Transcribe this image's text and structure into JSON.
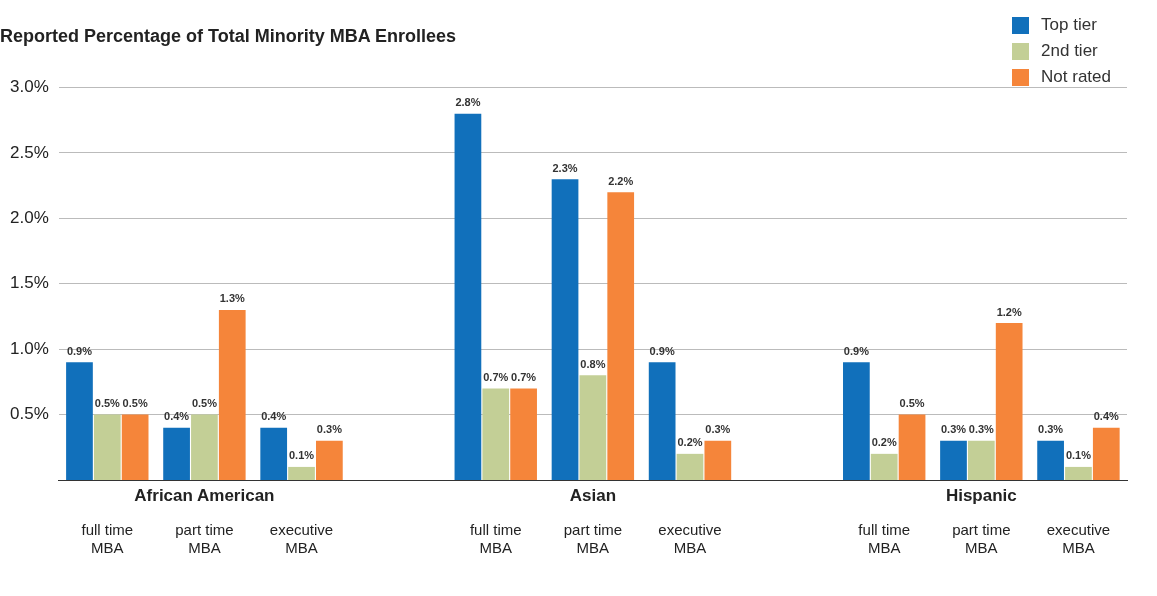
{
  "chart_data": {
    "type": "bar",
    "title": "Reported Percentage of Total Minority MBA Enrollees",
    "categories": [
      "full time MBA",
      "part time MBA",
      "executive MBA",
      null,
      "full time MBA",
      "part time MBA",
      "executive MBA",
      null,
      "full time MBA",
      "part time MBA",
      "executive MBA"
    ],
    "series": [
      {
        "name": "Top tier",
        "color": "#1170bb",
        "values": [
          0.9,
          0.4,
          0.4,
          null,
          2.8,
          2.3,
          0.9,
          null,
          0.9,
          0.3,
          0.3
        ],
        "value_labels": [
          "0.9%",
          "0.4%",
          "0.4%",
          null,
          "2.8%",
          "2.3%",
          "0.9%",
          null,
          "0.9%",
          "0.3%",
          "0.3%"
        ]
      },
      {
        "name": "2nd tier",
        "color": "#c3cf96",
        "values": [
          0.5,
          0.5,
          0.1,
          null,
          0.7,
          0.8,
          0.2,
          null,
          0.2,
          0.3,
          0.1
        ],
        "value_labels": [
          "0.5%",
          "0.5%",
          "0.1%",
          null,
          "0.7%",
          "0.8%",
          "0.2%",
          null,
          "0.2%",
          "0.3%",
          "0.1%"
        ]
      },
      {
        "name": "Not rated",
        "color": "#f5853a",
        "values": [
          0.5,
          1.3,
          0.3,
          null,
          0.7,
          2.2,
          0.3,
          null,
          0.5,
          1.2,
          0.4
        ],
        "value_labels": [
          "0.5%",
          "1.3%",
          "0.3%",
          null,
          "0.7%",
          "2.2%",
          "0.3%",
          null,
          "0.5%",
          "1.2%",
          "0.4%"
        ]
      }
    ],
    "ylim": [
      0,
      3.0
    ],
    "yticks": [
      {
        "value": 0.5,
        "label": "0.5%"
      },
      {
        "value": 1.0,
        "label": "1.0%"
      },
      {
        "value": 1.5,
        "label": "1.5%"
      },
      {
        "value": 2.0,
        "label": "2.0%"
      },
      {
        "value": 2.5,
        "label": "2.5%"
      },
      {
        "value": 3.0,
        "label": "3.0%"
      }
    ],
    "grid": "y",
    "legend": "top right",
    "annotations": [
      "African American",
      "Asian",
      "Hispanic"
    ]
  }
}
